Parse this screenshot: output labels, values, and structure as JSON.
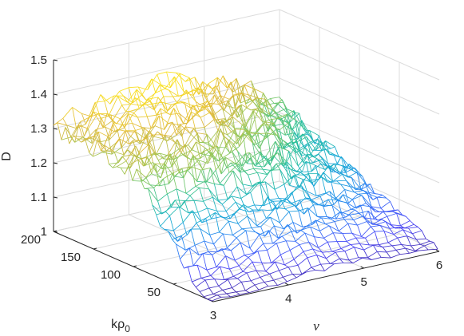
{
  "chart_data": {
    "type": "surface-mesh",
    "title": "",
    "xlabel": "ν",
    "ylabel_main": "kρ",
    "ylabel_sub": "0",
    "zlabel": "D",
    "x_ticks": [
      "3",
      "4",
      "5",
      "6"
    ],
    "y_ticks": [
      "50",
      "100",
      "150",
      "200"
    ],
    "z_ticks": [
      "1",
      "1.1",
      "1.2",
      "1.3",
      "1.4",
      "1.5"
    ],
    "xlim": [
      3,
      6
    ],
    "ylim": [
      0,
      200
    ],
    "zlim": [
      1,
      1.5
    ],
    "grid": true,
    "colormap": "parula",
    "colormap_stops": [
      "#3e26a8",
      "#4743f8",
      "#2c7ef5",
      "#17a9d6",
      "#27c09b",
      "#8bc85a",
      "#e0b93e",
      "#f9e022"
    ],
    "mesh_nu_points": 25,
    "mesh_k_points": 41,
    "surface_trend": {
      "note_nu": [
        3,
        3.5,
        4,
        4.5,
        5,
        5.5,
        6
      ],
      "D_at_k_200": [
        1.3,
        1.33,
        1.36,
        1.38,
        1.33,
        1.3,
        1.22
      ],
      "D_at_k_100": [
        1.27,
        1.28,
        1.27,
        1.24,
        1.21,
        1.17,
        1.12
      ],
      "D_at_k_20": [
        1.02,
        1.03,
        1.05,
        1.07,
        1.06,
        1.05,
        1.03
      ],
      "D_at_k_5": [
        1.0,
        1.0,
        1.01,
        1.02,
        1.02,
        1.01,
        1.01
      ]
    }
  }
}
